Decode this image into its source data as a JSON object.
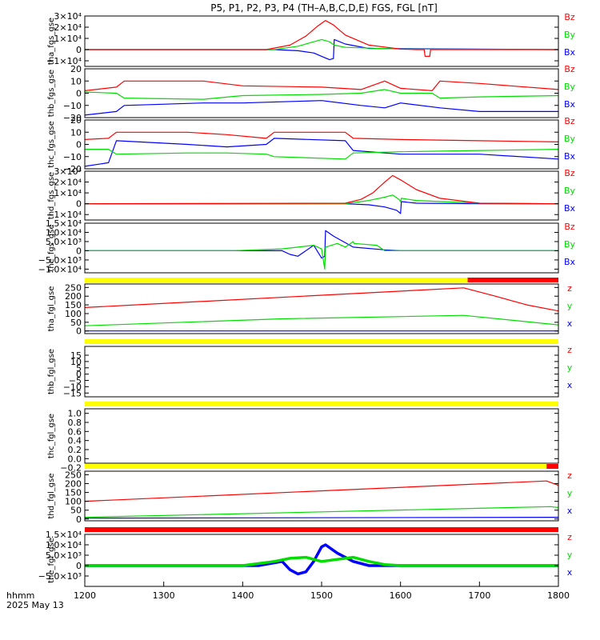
{
  "title": "P5, P1, P2, P3, P4 (TH–A,B,C,D,E) FGS, FGL [nT]",
  "colors": {
    "x": "#0000ff",
    "y": "#00dd00",
    "z": "#ff0000",
    "flag_yellow": "#ffff00",
    "flag_red": "#ff0000",
    "axis": "#000000"
  },
  "x_axis": {
    "range": [
      1200,
      1800
    ],
    "ticks": [
      "1200",
      "1300",
      "1400",
      "1500",
      "1600",
      "1700",
      "1800"
    ],
    "corner_label_1": "hhmm",
    "corner_label_2": "2025 May 13"
  },
  "chart_data": [
    {
      "type": "line",
      "ylabel": "tha_fgs_gse",
      "ylim": [
        -15000,
        30000
      ],
      "ytick_values": [
        30000,
        20000,
        10000,
        0,
        -10000
      ],
      "yticks": [
        "3×10⁴",
        "2×10⁴",
        "1×10⁴",
        "0",
        "−1×10⁴"
      ],
      "legend": [
        "Bz",
        "By",
        "Bx"
      ],
      "series": [
        {
          "name": "Bx",
          "color": "blue",
          "x": [
            1200,
            1440,
            1470,
            1490,
            1500,
            1510,
            1515,
            1516,
            1530,
            1560,
            1800
          ],
          "y": [
            0,
            0,
            -1000,
            -3000,
            -6000,
            -9000,
            -8000,
            9000,
            5000,
            1000,
            0
          ]
        },
        {
          "name": "By",
          "color": "green",
          "x": [
            1200,
            1440,
            1470,
            1490,
            1500,
            1510,
            1516,
            1530,
            1600,
            1800
          ],
          "y": [
            0,
            0,
            3000,
            7000,
            9000,
            7000,
            4000,
            2000,
            500,
            0
          ]
        },
        {
          "name": "Bz",
          "color": "red",
          "x": [
            1200,
            1430,
            1460,
            1480,
            1495,
            1505,
            1515,
            1530,
            1560,
            1600,
            1620,
            1630,
            1631,
            1637,
            1638,
            1800
          ],
          "y": [
            0,
            0,
            4000,
            12000,
            21000,
            26000,
            22000,
            13000,
            4000,
            500,
            0,
            0,
            -6000,
            -6000,
            0,
            0
          ]
        }
      ]
    },
    {
      "type": "line",
      "ylabel": "thb_fgs_gse",
      "ylim": [
        -20,
        20
      ],
      "ytick_values": [
        20,
        10,
        0,
        -10,
        -20
      ],
      "yticks": [
        "20",
        "10",
        "0",
        "−10",
        "−20"
      ],
      "legend": [
        "Bz",
        "By",
        "Bx"
      ],
      "series": [
        {
          "name": "Bx",
          "color": "blue",
          "x": [
            1200,
            1240,
            1250,
            1350,
            1400,
            1500,
            1550,
            1580,
            1600,
            1650,
            1700,
            1800
          ],
          "y": [
            -18,
            -15,
            -10,
            -8,
            -8,
            -6,
            -10,
            -12,
            -8,
            -12,
            -15,
            -15
          ]
        },
        {
          "name": "By",
          "color": "green",
          "x": [
            1200,
            1240,
            1250,
            1350,
            1400,
            1500,
            1550,
            1580,
            1600,
            1640,
            1650,
            1700,
            1800
          ],
          "y": [
            1,
            0,
            -4,
            -5,
            -2,
            -1,
            0,
            3,
            0,
            0,
            -4,
            -3,
            -2
          ]
        },
        {
          "name": "Bz",
          "color": "red",
          "x": [
            1200,
            1240,
            1250,
            1350,
            1400,
            1500,
            1550,
            1580,
            1600,
            1640,
            1650,
            1700,
            1800
          ],
          "y": [
            2,
            5,
            10,
            10,
            6,
            5,
            3,
            10,
            4,
            2,
            10,
            8,
            3
          ]
        }
      ]
    },
    {
      "type": "line",
      "ylabel": "thc_fgs_gse",
      "ylim": [
        -20,
        20
      ],
      "ytick_values": [
        20,
        10,
        0,
        -10,
        -20
      ],
      "yticks": [
        "20",
        "10",
        "0",
        "−10",
        "−20"
      ],
      "legend": [
        "Bz",
        "By",
        "Bx"
      ],
      "series": [
        {
          "name": "Bx",
          "color": "blue",
          "x": [
            1200,
            1230,
            1240,
            1330,
            1380,
            1430,
            1440,
            1530,
            1540,
            1600,
            1700,
            1800
          ],
          "y": [
            -18,
            -15,
            3,
            0,
            -2,
            0,
            5,
            3,
            -5,
            -8,
            -8,
            -12
          ]
        },
        {
          "name": "By",
          "color": "green",
          "x": [
            1200,
            1230,
            1240,
            1330,
            1380,
            1430,
            1440,
            1530,
            1540,
            1600,
            1700,
            1800
          ],
          "y": [
            -4,
            -4,
            -8,
            -7,
            -7,
            -8,
            -10,
            -12,
            -7,
            -6,
            -5,
            -4
          ]
        },
        {
          "name": "Bz",
          "color": "red",
          "x": [
            1200,
            1230,
            1240,
            1330,
            1380,
            1430,
            1440,
            1530,
            1540,
            1600,
            1700,
            1800
          ],
          "y": [
            4,
            5,
            10,
            10,
            8,
            5,
            10,
            10,
            5,
            4,
            3,
            2
          ]
        }
      ]
    },
    {
      "type": "line",
      "ylabel": "thd_fgs_gse",
      "ylim": [
        -15000,
        30000
      ],
      "ytick_values": [
        30000,
        20000,
        10000,
        0,
        -10000
      ],
      "yticks": [
        "3×10⁴",
        "2×10⁴",
        "1×10⁴",
        "0",
        "−1×10⁴"
      ],
      "legend": [
        "Bz",
        "By",
        "Bx"
      ],
      "series": [
        {
          "name": "Bx",
          "color": "blue",
          "x": [
            1200,
            1530,
            1560,
            1580,
            1595,
            1600,
            1601,
            1620,
            1700,
            1800
          ],
          "y": [
            0,
            0,
            -1000,
            -3000,
            -6000,
            -9000,
            2000,
            500,
            0,
            0
          ]
        },
        {
          "name": "By",
          "color": "green",
          "x": [
            1200,
            1530,
            1560,
            1580,
            1590,
            1598,
            1600,
            1601,
            1620,
            1700,
            1800
          ],
          "y": [
            0,
            0,
            3000,
            6000,
            8000,
            4000,
            2000,
            5000,
            3000,
            500,
            0
          ]
        },
        {
          "name": "Bz",
          "color": "red",
          "x": [
            1200,
            1530,
            1550,
            1565,
            1580,
            1590,
            1600,
            1620,
            1650,
            1700,
            1800
          ],
          "y": [
            0,
            500,
            4000,
            10000,
            20000,
            26000,
            22000,
            13000,
            5000,
            500,
            0
          ]
        }
      ]
    },
    {
      "type": "line",
      "ylabel": "the_fgs_gse",
      "ylim": [
        -12000,
        15000
      ],
      "ytick_values": [
        15000,
        10000,
        5000,
        0,
        -5000,
        -10000
      ],
      "yticks": [
        "1.5×10⁴",
        "1.0×10⁴",
        "5.0×10³",
        "0",
        "−5.0×10³",
        "−1.0×10⁴"
      ],
      "legend": [
        "Bz",
        "By",
        "Bx"
      ],
      "series": [
        {
          "name": "Bx",
          "color": "blue",
          "x": [
            1200,
            1390,
            1450,
            1460,
            1470,
            1490,
            1500,
            1504,
            1505,
            1515,
            1540,
            1580,
            1600,
            1800
          ],
          "y": [
            0,
            0,
            0,
            -2000,
            -3000,
            3000,
            -4000,
            -3000,
            11000,
            8000,
            2000,
            500,
            0,
            0
          ]
        },
        {
          "name": "By",
          "color": "green",
          "x": [
            1200,
            1390,
            1450,
            1470,
            1490,
            1500,
            1504,
            1505,
            1520,
            1530,
            1540,
            1541,
            1570,
            1580,
            1600,
            1800
          ],
          "y": [
            0,
            0,
            1000,
            2000,
            3000,
            1000,
            -10000,
            2000,
            4000,
            2000,
            5000,
            4000,
            3000,
            0,
            0,
            0
          ]
        }
      ]
    },
    {
      "type": "line",
      "ylabel": "tha_fgl_gse",
      "ylim": [
        -15,
        270
      ],
      "ytick_values": [
        250,
        200,
        150,
        100,
        50,
        0
      ],
      "yticks": [
        "250",
        "200",
        "150",
        "100",
        "50",
        "0"
      ],
      "legend": [
        "z",
        "y",
        "x"
      ],
      "flag_bar": [
        {
          "from": 1200,
          "to": 1685,
          "color": "yellow"
        },
        {
          "from": 1685,
          "to": 1800,
          "color": "red"
        }
      ],
      "series": [
        {
          "name": "x",
          "color": "blue",
          "x": [
            1200,
            1800
          ],
          "y": [
            0,
            0
          ]
        },
        {
          "name": "y",
          "color": "green",
          "x": [
            1200,
            1450,
            1680,
            1800
          ],
          "y": [
            30,
            70,
            90,
            35
          ]
        },
        {
          "name": "z",
          "color": "red",
          "x": [
            1200,
            1680,
            1720,
            1760,
            1800
          ],
          "y": [
            135,
            248,
            200,
            150,
            115
          ]
        }
      ]
    },
    {
      "type": "line",
      "ylabel": "thb_fgl_gse",
      "ylim": [
        -18,
        22
      ],
      "ytick_values": [
        15,
        10,
        5,
        0,
        -5,
        -10,
        -15
      ],
      "yticks": [
        "15",
        "10",
        "5",
        "0",
        "−5",
        "−10",
        "−15"
      ],
      "legend": [
        "z",
        "y",
        "x"
      ],
      "flag_bar": [
        {
          "from": 1200,
          "to": 1800,
          "color": "yellow"
        }
      ],
      "series": []
    },
    {
      "type": "line",
      "ylabel": "thc_fgl_gse",
      "ylim": [
        -0.1,
        1.1
      ],
      "ytick_values": [
        1.0,
        0.8,
        0.6,
        0.4,
        0.2,
        0.0,
        -0.2
      ],
      "yticks": [
        "1.0",
        "0.8",
        "0.6",
        "0.4",
        "0.2",
        "0.0",
        "−0.2"
      ],
      "legend": [],
      "flag_bar": [
        {
          "from": 1200,
          "to": 1800,
          "color": "yellow"
        }
      ],
      "series": []
    },
    {
      "type": "line",
      "ylabel": "thd_fgl_gse",
      "ylim": [
        -10,
        270
      ],
      "ytick_values": [
        250,
        200,
        150,
        100,
        50,
        0
      ],
      "yticks": [
        "250",
        "200",
        "150",
        "100",
        "50",
        "0"
      ],
      "legend": [
        "z",
        "y",
        "x"
      ],
      "flag_bar": [
        {
          "from": 1200,
          "to": 1785,
          "color": "yellow"
        },
        {
          "from": 1785,
          "to": 1800,
          "color": "red"
        }
      ],
      "series": [
        {
          "name": "x",
          "color": "blue",
          "x": [
            1200,
            1800
          ],
          "y": [
            5,
            10
          ]
        },
        {
          "name": "y",
          "color": "green",
          "x": [
            1200,
            1790,
            1800
          ],
          "y": [
            10,
            70,
            65
          ]
        },
        {
          "name": "z",
          "color": "red",
          "x": [
            1200,
            1785,
            1800
          ],
          "y": [
            100,
            215,
            190
          ]
        }
      ]
    },
    {
      "type": "line",
      "ylabel": "the_fgl_gse",
      "ylim": [
        -10000,
        15000
      ],
      "ytick_values": [
        15000,
        10000,
        5000,
        0,
        -5000
      ],
      "yticks": [
        "1.5×10⁴",
        "1.0×10⁴",
        "5.0×10³",
        "0",
        "−5.0×10³"
      ],
      "legend": [
        "z",
        "y",
        "x"
      ],
      "flag_bar": [
        {
          "from": 1200,
          "to": 1800,
          "color": "red"
        }
      ],
      "series": [
        {
          "name": "x",
          "color": "blue",
          "x": [
            1200,
            1380,
            1420,
            1450,
            1460,
            1470,
            1480,
            1490,
            1500,
            1505,
            1520,
            1540,
            1560,
            1600,
            1800
          ],
          "y": [
            0,
            0,
            0,
            2000,
            -2000,
            -4000,
            -3000,
            2000,
            9000,
            10000,
            6000,
            2000,
            0,
            0,
            0
          ]
        },
        {
          "name": "y",
          "color": "green",
          "x": [
            1200,
            1400,
            1440,
            1460,
            1480,
            1500,
            1520,
            1540,
            1560,
            1580,
            1600,
            1800
          ],
          "y": [
            0,
            0,
            2000,
            3500,
            4000,
            2000,
            3000,
            4000,
            2000,
            500,
            0,
            0
          ]
        }
      ]
    }
  ]
}
